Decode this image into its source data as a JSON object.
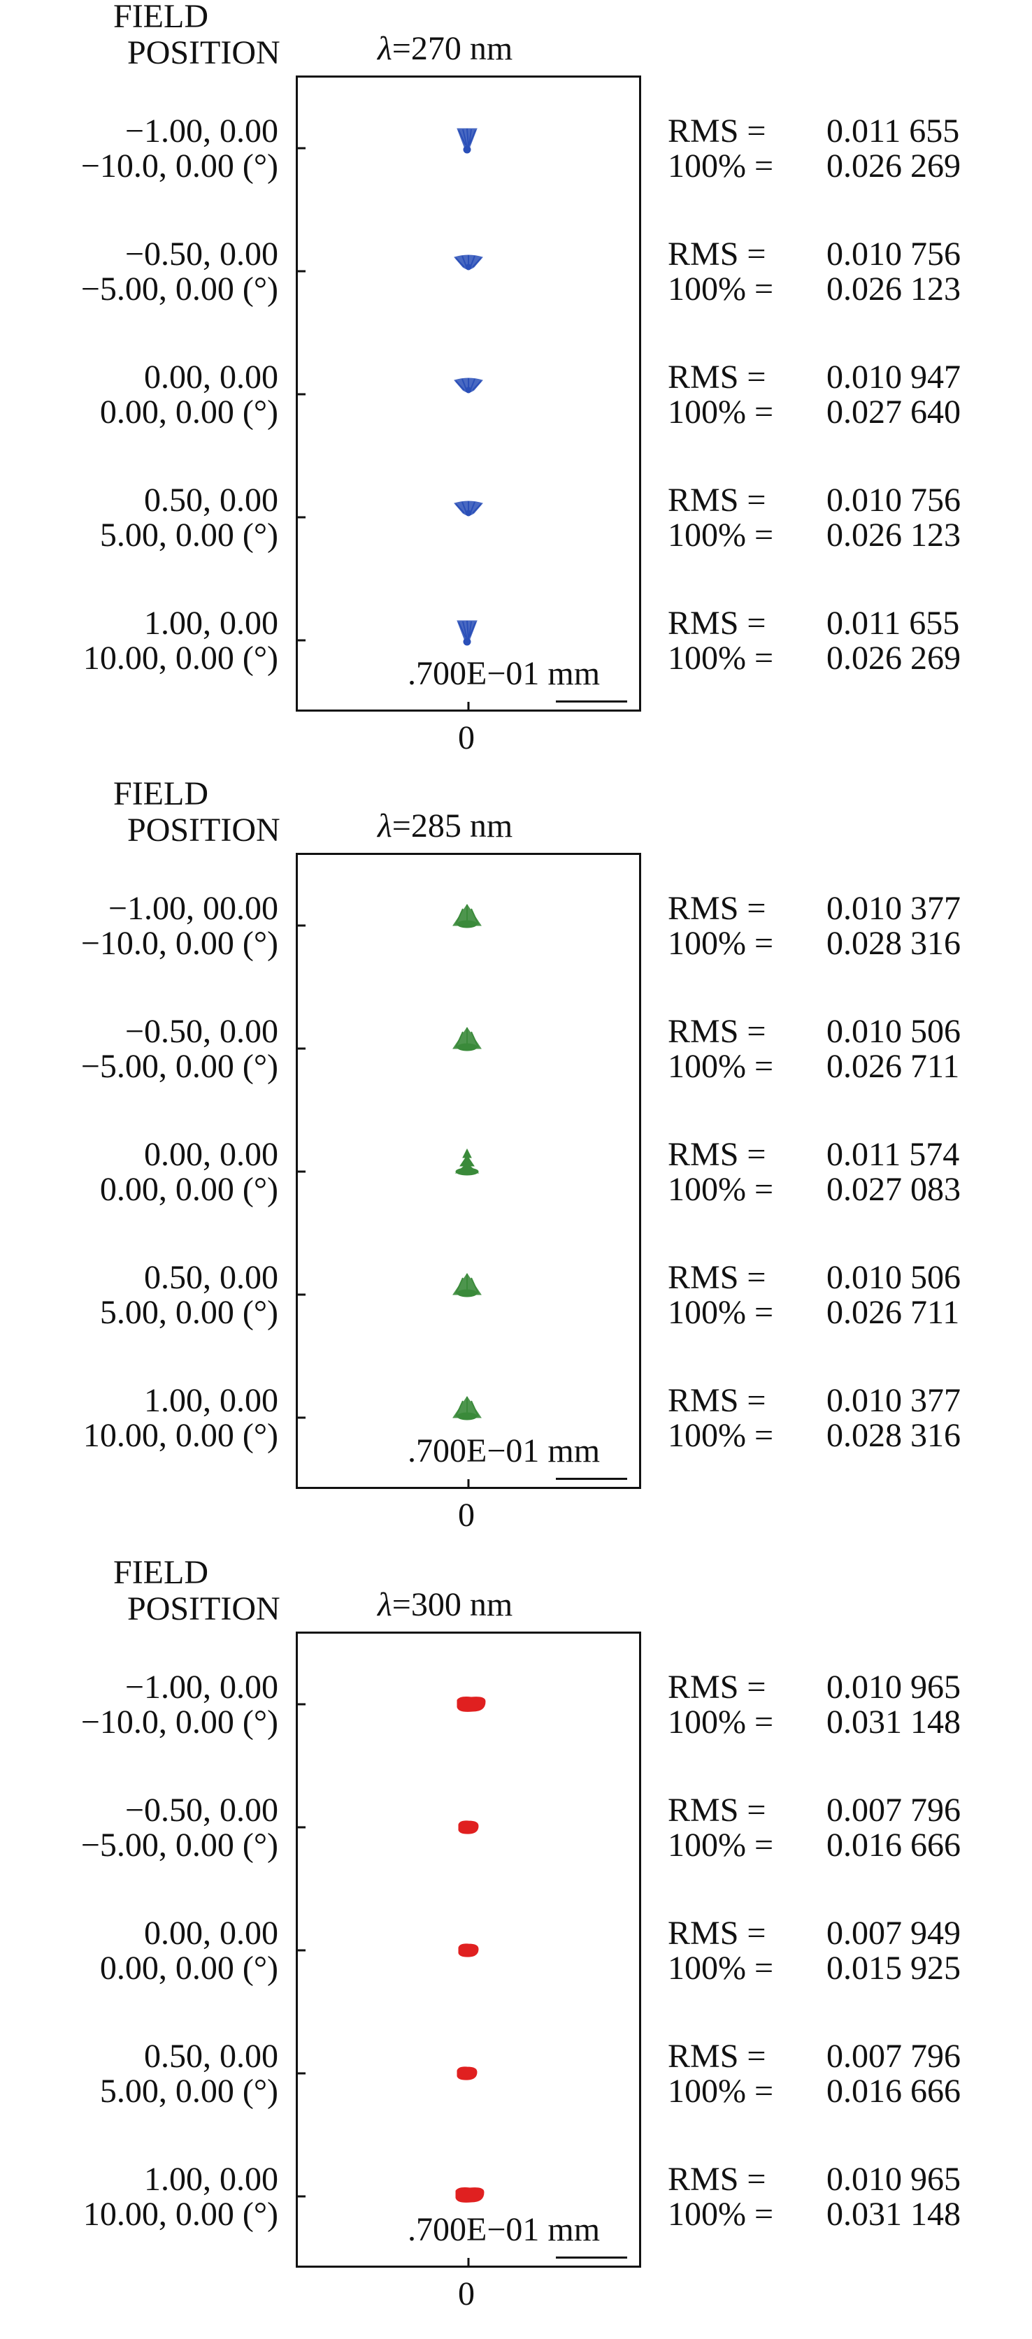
{
  "panels": [
    {
      "header_field": "FIELD",
      "header_position": "POSITION",
      "lambda_symbol": "λ",
      "wavelength": "=270 nm",
      "x_tick": "0",
      "scale_label": ".700E−01 mm",
      "spot_color": "#2a4fb8",
      "fields": [
        {
          "norm": "−1.00, 0.00",
          "angle": "−10.0, 0.00 (°)",
          "rms_label": "RMS  =",
          "rms": "0.011 655",
          "pct_label": "100% =",
          "pct": "0.026 269"
        },
        {
          "norm": "−0.50, 0.00",
          "angle": "−5.00, 0.00 (°)",
          "rms_label": "RMS  =",
          "rms": "0.010 756",
          "pct_label": "100% =",
          "pct": "0.026 123"
        },
        {
          "norm": "0.00, 0.00",
          "angle": "0.00, 0.00 (°)",
          "rms_label": "RMS  =",
          "rms": "0.010 947",
          "pct_label": "100% =",
          "pct": "0.027 640"
        },
        {
          "norm": "0.50, 0.00",
          "angle": "5.00, 0.00 (°)",
          "rms_label": "RMS  =",
          "rms": "0.010 756",
          "pct_label": "100% =",
          "pct": "0.026 123"
        },
        {
          "norm": "1.00, 0.00",
          "angle": "10.00, 0.00 (°)",
          "rms_label": "RMS  =",
          "rms": "0.011 655",
          "pct_label": "100% =",
          "pct": "0.026 269"
        }
      ]
    },
    {
      "header_field": "FIELD",
      "header_position": "POSITION",
      "lambda_symbol": "λ",
      "wavelength": "=285 nm",
      "x_tick": "0",
      "scale_label": ".700E−01 mm",
      "spot_color": "#3a8a3a",
      "fields": [
        {
          "norm": "−1.00, 00.00",
          "angle": "−10.0, 0.00 (°)",
          "rms_label": "RMS  =",
          "rms": "0.010 377",
          "pct_label": "100% =",
          "pct": "0.028 316"
        },
        {
          "norm": "−0.50, 0.00",
          "angle": "−5.00, 0.00 (°)",
          "rms_label": "RMS  =",
          "rms": "0.010 506",
          "pct_label": "100% =",
          "pct": "0.026 711"
        },
        {
          "norm": "0.00, 0.00",
          "angle": "0.00, 0.00 (°)",
          "rms_label": "RMS  =",
          "rms": "0.011 574",
          "pct_label": "100% =",
          "pct": "0.027 083"
        },
        {
          "norm": "0.50, 0.00",
          "angle": "5.00, 0.00 (°)",
          "rms_label": "RMS  =",
          "rms": "0.010 506",
          "pct_label": "100% =",
          "pct": "0.026 711"
        },
        {
          "norm": "1.00, 0.00",
          "angle": "10.00, 0.00 (°)",
          "rms_label": "RMS  =",
          "rms": "0.010 377",
          "pct_label": "100% =",
          "pct": "0.028 316"
        }
      ]
    },
    {
      "header_field": "FIELD",
      "header_position": "POSITION",
      "lambda_symbol": "λ",
      "wavelength": "=300 nm",
      "x_tick": "0",
      "scale_label": ".700E−01 mm",
      "spot_color": "#e02020",
      "fields": [
        {
          "norm": "−1.00, 0.00",
          "angle": "−10.0, 0.00 (°)",
          "rms_label": "RMS  =",
          "rms": "0.010 965",
          "pct_label": "100% =",
          "pct": "0.031 148"
        },
        {
          "norm": "−0.50, 0.00",
          "angle": "−5.00, 0.00 (°)",
          "rms_label": "RMS  =",
          "rms": "0.007 796",
          "pct_label": "100% =",
          "pct": "0.016 666"
        },
        {
          "norm": "0.00, 0.00",
          "angle": "0.00, 0.00 (°)",
          "rms_label": "RMS  =",
          "rms": "0.007 949",
          "pct_label": "100% =",
          "pct": "0.015 925"
        },
        {
          "norm": "0.50, 0.00",
          "angle": "5.00, 0.00 (°)",
          "rms_label": "RMS  =",
          "rms": "0.007 796",
          "pct_label": "100% =",
          "pct": "0.016 666"
        },
        {
          "norm": "1.00, 0.00",
          "angle": "10.00, 0.00 (°)",
          "rms_label": "RMS  =",
          "rms": "0.010 965",
          "pct_label": "100% =",
          "pct": "0.031 148"
        }
      ]
    }
  ]
}
